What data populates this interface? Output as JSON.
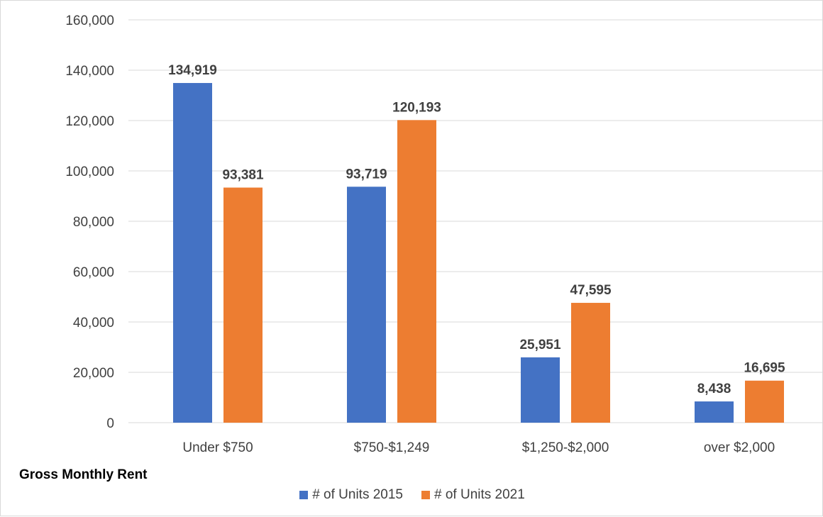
{
  "chart_data": {
    "type": "bar",
    "title": "",
    "xlabel": "Gross Monthly Rent",
    "ylabel": "",
    "categories": [
      "Under $750",
      "$750-$1,249",
      "$1,250-$2,000",
      "over $2,000"
    ],
    "series": [
      {
        "name": "# of Units 2015",
        "color": "#4472c4",
        "values": [
          134919,
          93719,
          25951,
          8438
        ],
        "labels": [
          "134,919",
          "93,719",
          "25,951",
          "8,438"
        ]
      },
      {
        "name": "# of Units 2021",
        "color": "#ed7d31",
        "values": [
          93381,
          120193,
          47595,
          16695
        ],
        "labels": [
          "93,381",
          "120,193",
          "47,595",
          "16,695"
        ]
      }
    ],
    "ylim": [
      0,
      160000
    ],
    "yticks": [
      0,
      20000,
      40000,
      60000,
      80000,
      100000,
      120000,
      140000,
      160000
    ],
    "ytick_labels": [
      "0",
      "20,000",
      "40,000",
      "60,000",
      "80,000",
      "100,000",
      "120,000",
      "140,000",
      "160,000"
    ],
    "grid": true,
    "gridline_color": "#d9d9d9",
    "legend_position": "bottom"
  }
}
